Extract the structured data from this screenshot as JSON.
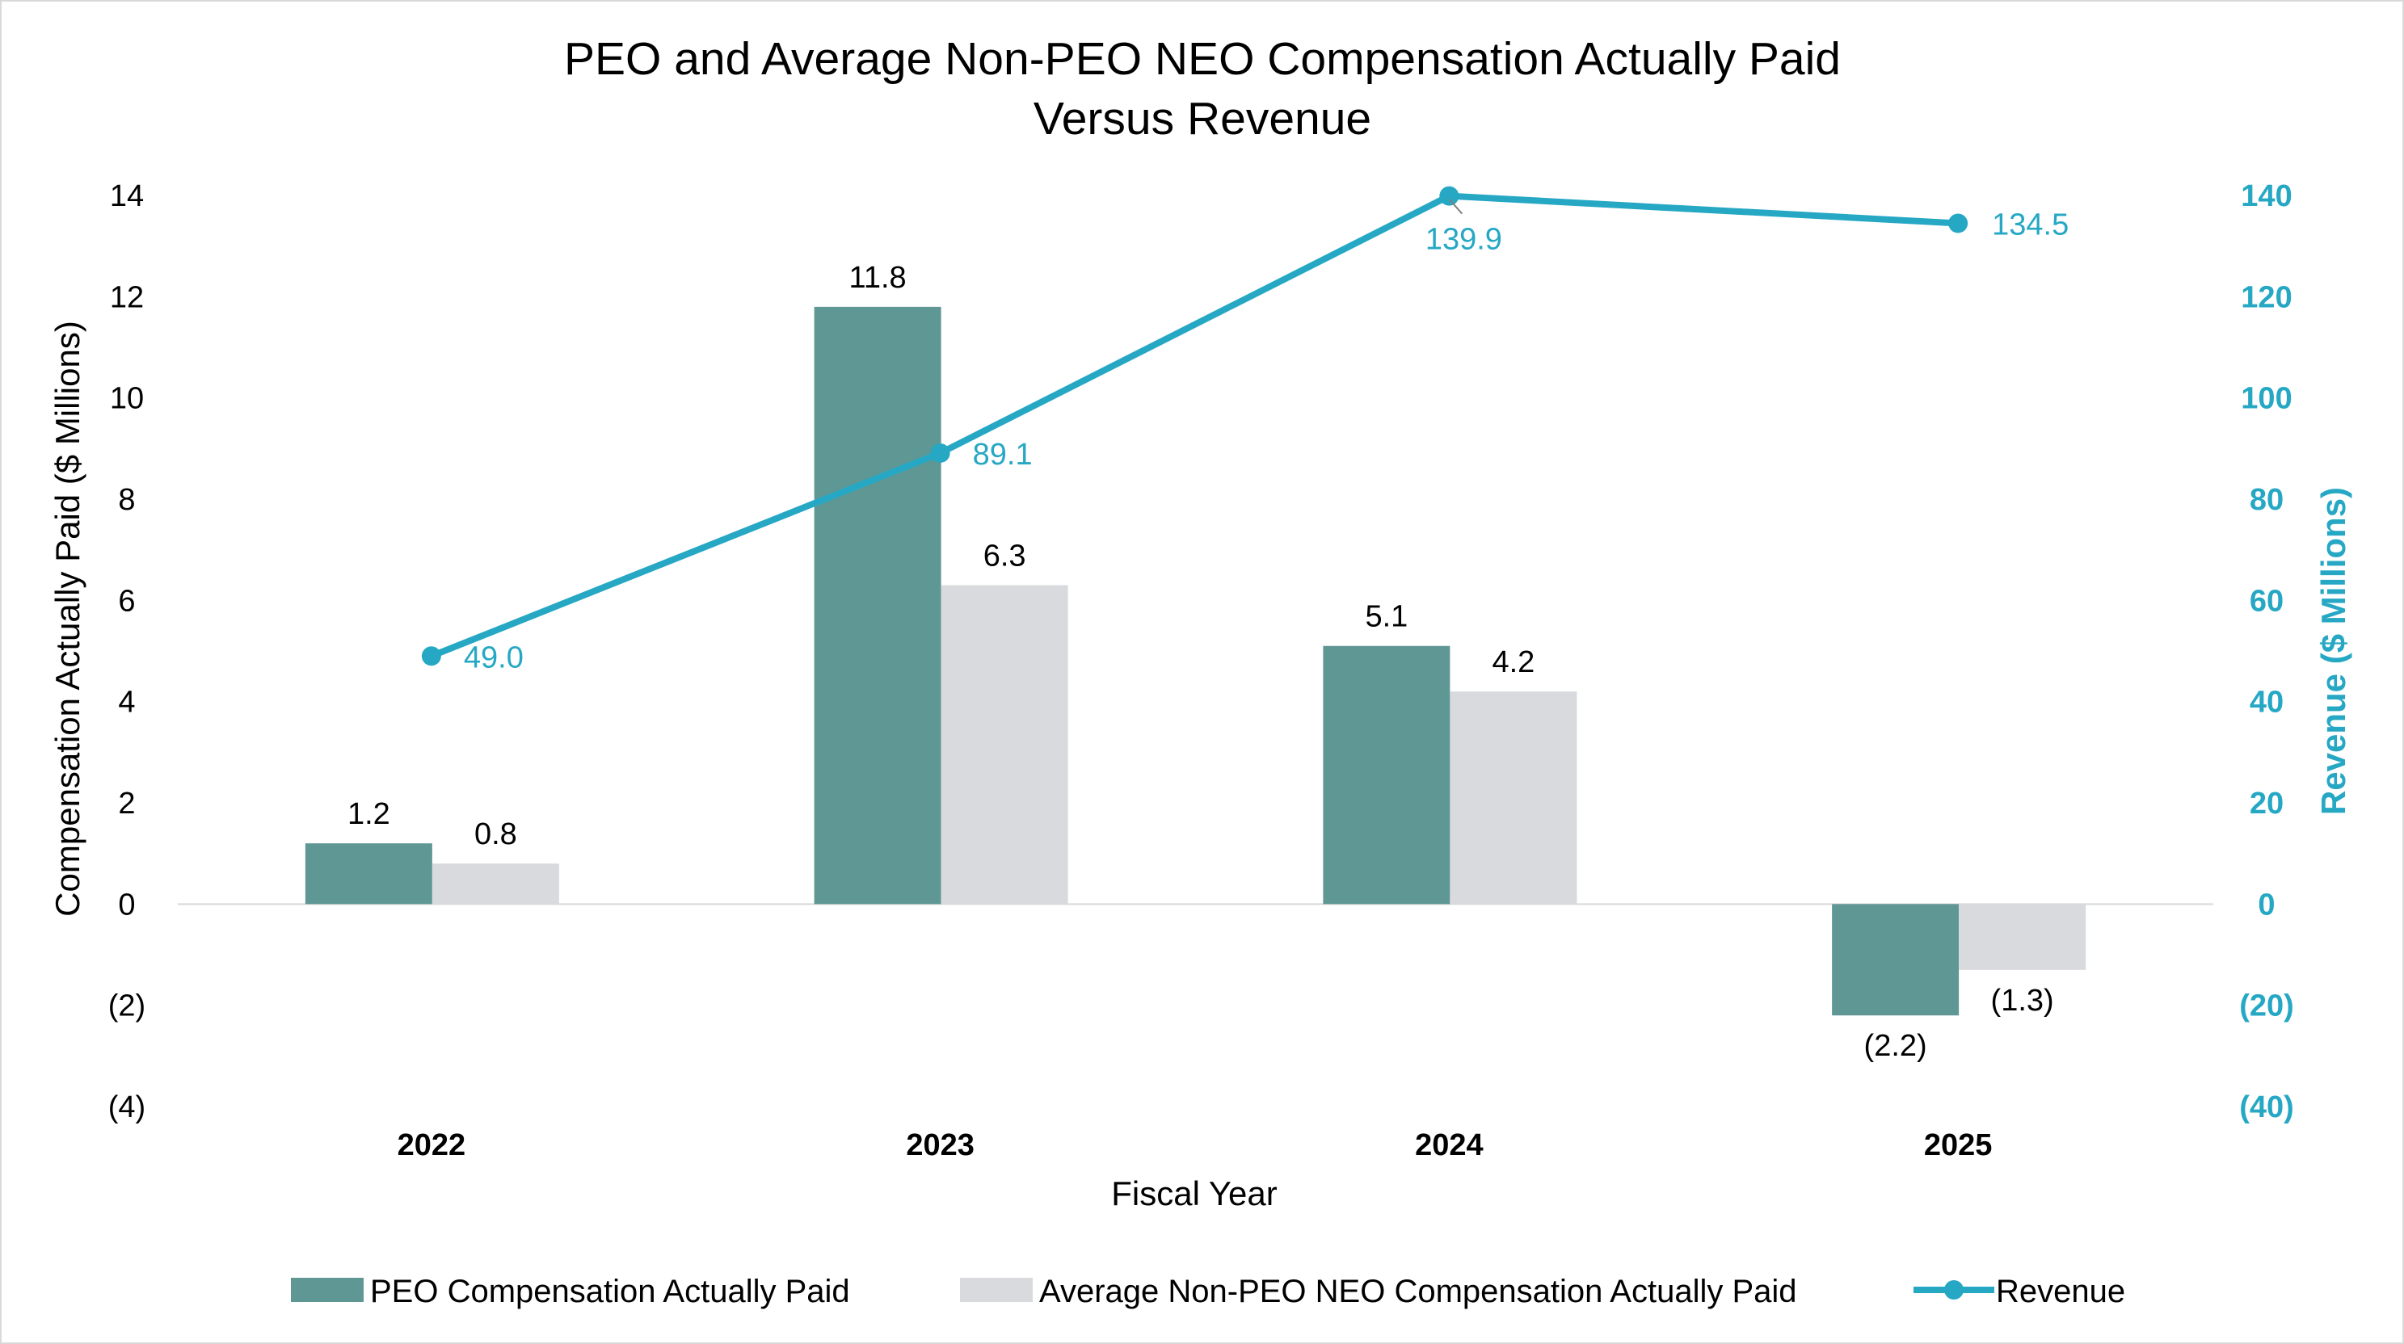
{
  "chart_data": {
    "type": "bar",
    "title_line1": "PEO and Average Non-PEO NEO Compensation Actually Paid",
    "title_line2": "Versus Revenue",
    "xlabel": "Fiscal Year",
    "ylabel": "Compensation Actually Paid ($ Millions)",
    "y2label": "Revenue ($ Millions)",
    "categories": [
      "2022",
      "2023",
      "2024",
      "2025"
    ],
    "ylim": [
      -4,
      14
    ],
    "y2lim": [
      -40,
      140
    ],
    "yticks": [
      14,
      12,
      10,
      8,
      6,
      4,
      2,
      0,
      -2,
      -4
    ],
    "ytick_labels": [
      "14",
      "12",
      "10",
      "8",
      "6",
      "4",
      "2",
      "0",
      "(2)",
      "(4)"
    ],
    "y2ticks": [
      140,
      120,
      100,
      80,
      60,
      40,
      20,
      0,
      -20,
      -40
    ],
    "y2tick_labels": [
      "140",
      "120",
      "100",
      "80",
      "60",
      "40",
      "20",
      "0",
      "(20)",
      "(40)"
    ],
    "series": [
      {
        "name": "PEO Compensation Actually Paid",
        "kind": "bar",
        "axis": "left",
        "color": "#5f9794",
        "values": [
          1.2,
          11.8,
          5.1,
          -2.2
        ],
        "labels": [
          "1.2",
          "11.8",
          "5.1",
          "(2.2)"
        ]
      },
      {
        "name": "Average Non-PEO NEO Compensation Actually Paid",
        "kind": "bar",
        "axis": "left",
        "color": "#d8dadd",
        "values": [
          0.8,
          6.3,
          4.2,
          -1.3
        ],
        "labels": [
          "0.8",
          "6.3",
          "4.2",
          "(1.3)"
        ]
      },
      {
        "name": "Revenue",
        "kind": "line",
        "axis": "right",
        "color": "#26a8c4",
        "values": [
          49.0,
          89.1,
          139.9,
          134.5
        ],
        "labels": [
          "49.0",
          "89.1",
          "139.9",
          "134.5"
        ]
      }
    ],
    "legend_position": "bottom",
    "grid": false
  }
}
